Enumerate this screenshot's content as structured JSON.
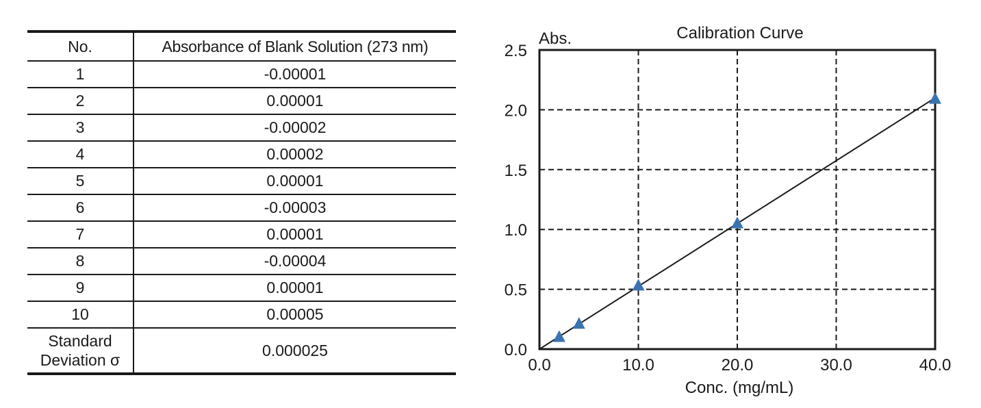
{
  "table": {
    "headers": [
      "No.",
      "Absorbance of Blank Solution (273 nm)"
    ],
    "rows": [
      {
        "no": "1",
        "value": "-0.00001"
      },
      {
        "no": "2",
        "value": "0.00001"
      },
      {
        "no": "3",
        "value": "-0.00002"
      },
      {
        "no": "4",
        "value": "0.00002"
      },
      {
        "no": "5",
        "value": "0.00001"
      },
      {
        "no": "6",
        "value": "-0.00003"
      },
      {
        "no": "7",
        "value": "0.00001"
      },
      {
        "no": "8",
        "value": "-0.00004"
      },
      {
        "no": "9",
        "value": "0.00001"
      },
      {
        "no": "10",
        "value": "0.00005"
      }
    ],
    "summary": {
      "label_line1": "Standard",
      "label_line2": "Deviation σ",
      "value": "0.000025"
    }
  },
  "chart_data": {
    "type": "scatter",
    "title": "Calibration Curve",
    "xlabel": "Conc. (mg/mL)",
    "ylabel": "Abs.",
    "x_ticks": [
      "0.0",
      "10.0",
      "20.0",
      "30.0",
      "40.0"
    ],
    "y_ticks": [
      "0.0",
      "0.5",
      "1.0",
      "1.5",
      "2.0",
      "2.5"
    ],
    "xlim": [
      0,
      40
    ],
    "ylim": [
      0,
      2.5
    ],
    "grid": true,
    "grid_style": "dashed",
    "marker": "triangle",
    "marker_color": "#3a74b0",
    "line_color": "#1a1a1a",
    "points": [
      {
        "x": 2.0,
        "y": 0.1
      },
      {
        "x": 4.0,
        "y": 0.21
      },
      {
        "x": 10.0,
        "y": 0.53
      },
      {
        "x": 20.0,
        "y": 1.05
      },
      {
        "x": 40.0,
        "y": 2.09
      }
    ],
    "fit_line": {
      "x": [
        0,
        40
      ],
      "y": [
        0,
        2.1
      ]
    }
  }
}
